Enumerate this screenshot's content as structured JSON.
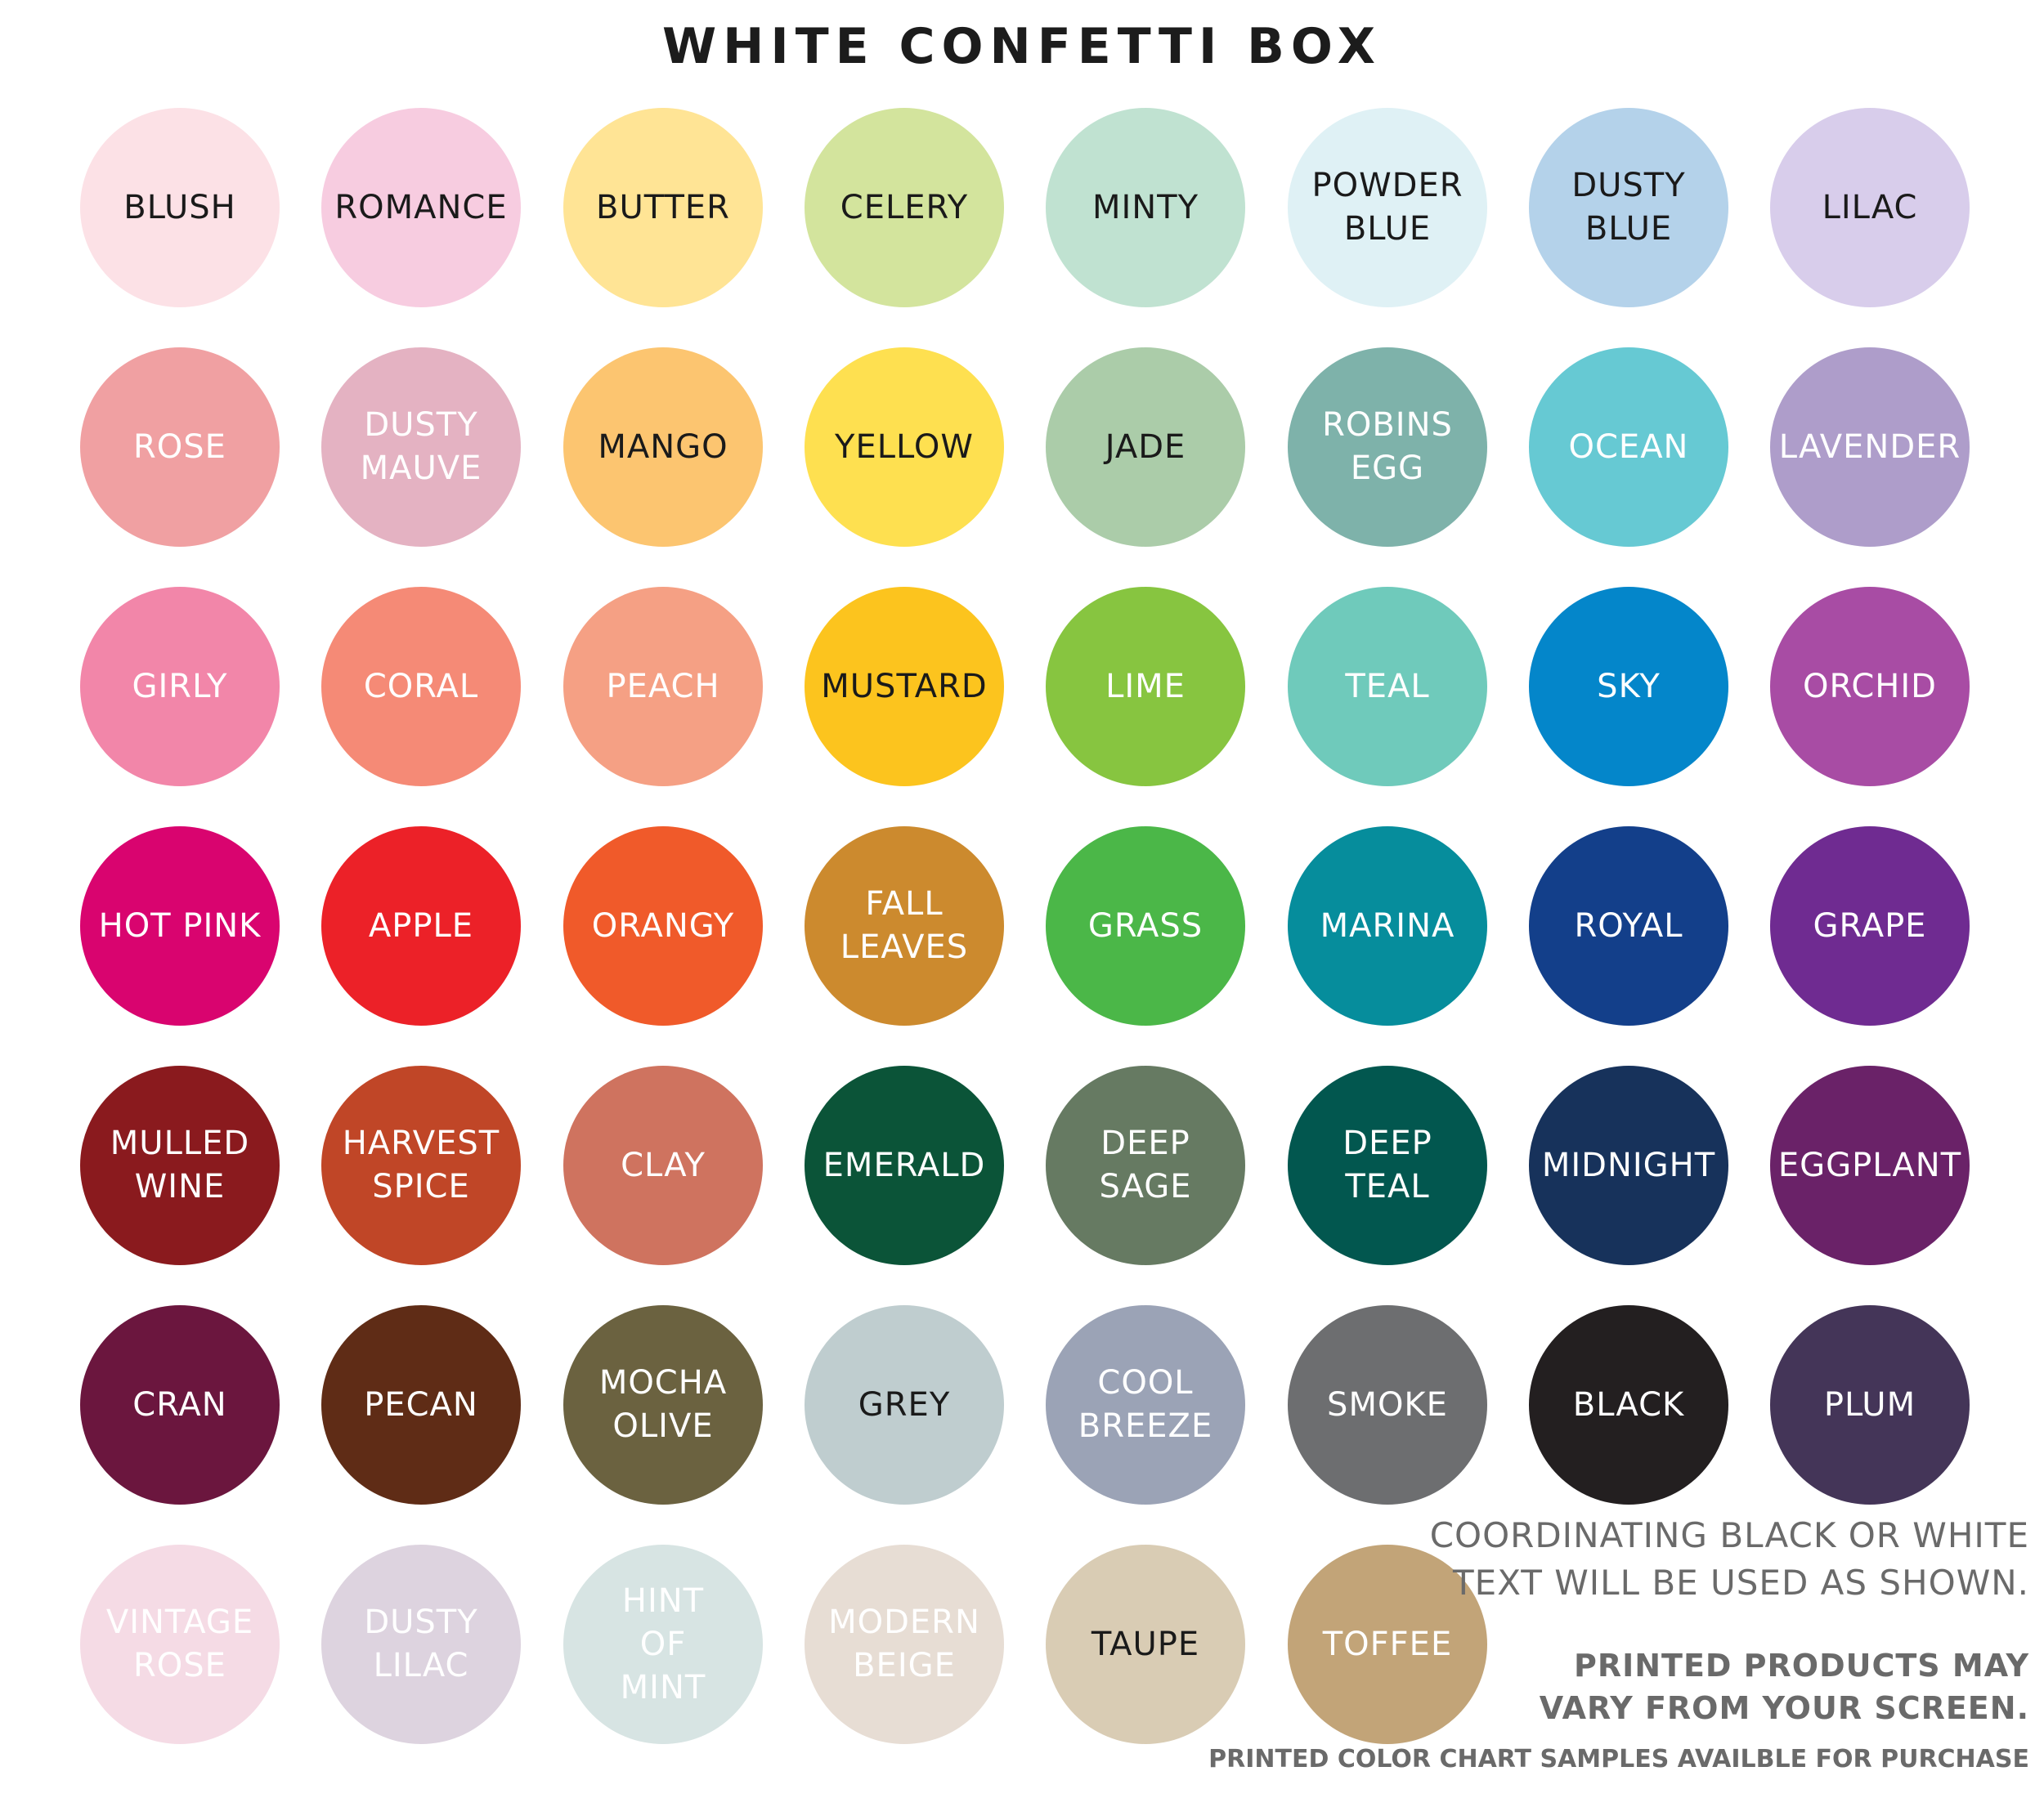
{
  "title": "WHITE CONFETTI BOX",
  "swatches": [
    {
      "lines": [
        "BLUSH"
      ],
      "fill": "#fce1e6",
      "text": "#1a1a1a"
    },
    {
      "lines": [
        "ROMANCE"
      ],
      "fill": "#f7cce0",
      "text": "#1a1a1a"
    },
    {
      "lines": [
        "BUTTER"
      ],
      "fill": "#ffe495",
      "text": "#1a1a1a"
    },
    {
      "lines": [
        "CELERY"
      ],
      "fill": "#d3e49d",
      "text": "#1a1a1a"
    },
    {
      "lines": [
        "MINTY"
      ],
      "fill": "#c0e2d1",
      "text": "#1a1a1a"
    },
    {
      "lines": [
        "POWDER",
        "BLUE"
      ],
      "fill": "#dff1f5",
      "text": "#1a1a1a"
    },
    {
      "lines": [
        "DUSTY",
        "BLUE"
      ],
      "fill": "#b4d2ea",
      "text": "#1a1a1a"
    },
    {
      "lines": [
        "LILAC"
      ],
      "fill": "#d8cdeb",
      "text": "#1a1a1a"
    },
    {
      "lines": [
        "ROSE"
      ],
      "fill": "#f0a0a2",
      "text": "#ffffff"
    },
    {
      "lines": [
        "DUSTY",
        "MAUVE"
      ],
      "fill": "#e4b2c2",
      "text": "#ffffff"
    },
    {
      "lines": [
        "MANGO"
      ],
      "fill": "#fcc570",
      "text": "#1a1a1a"
    },
    {
      "lines": [
        "YELLOW"
      ],
      "fill": "#fee050",
      "text": "#1a1a1a"
    },
    {
      "lines": [
        "JADE"
      ],
      "fill": "#abcca9",
      "text": "#1a1a1a"
    },
    {
      "lines": [
        "ROBINS",
        "EGG"
      ],
      "fill": "#7eb2aa",
      "text": "#ffffff"
    },
    {
      "lines": [
        "OCEAN"
      ],
      "fill": "#66c9d3",
      "text": "#ffffff"
    },
    {
      "lines": [
        "LAVENDER"
      ],
      "fill": "#ae9dca",
      "text": "#ffffff"
    },
    {
      "lines": [
        "GIRLY"
      ],
      "fill": "#f286a9",
      "text": "#ffffff"
    },
    {
      "lines": [
        "CORAL"
      ],
      "fill": "#f58a76",
      "text": "#ffffff"
    },
    {
      "lines": [
        "PEACH"
      ],
      "fill": "#f5a084",
      "text": "#ffffff"
    },
    {
      "lines": [
        "MUSTARD"
      ],
      "fill": "#fcc41e",
      "text": "#1a1a1a"
    },
    {
      "lines": [
        "LIME"
      ],
      "fill": "#87c540",
      "text": "#ffffff"
    },
    {
      "lines": [
        "TEAL"
      ],
      "fill": "#6fcabb",
      "text": "#ffffff"
    },
    {
      "lines": [
        "SKY"
      ],
      "fill": "#0486ca",
      "text": "#ffffff"
    },
    {
      "lines": [
        "ORCHID"
      ],
      "fill": "#a84ca4",
      "text": "#ffffff"
    },
    {
      "lines": [
        "HOT PINK"
      ],
      "fill": "#d9046f",
      "text": "#ffffff"
    },
    {
      "lines": [
        "APPLE"
      ],
      "fill": "#ec2128",
      "text": "#ffffff"
    },
    {
      "lines": [
        "ORANGY"
      ],
      "fill": "#f05a2a",
      "text": "#ffffff"
    },
    {
      "lines": [
        "FALL",
        "LEAVES"
      ],
      "fill": "#cc8a2e",
      "text": "#ffffff"
    },
    {
      "lines": [
        "GRASS"
      ],
      "fill": "#4bb748",
      "text": "#ffffff"
    },
    {
      "lines": [
        "MARINA"
      ],
      "fill": "#068d9c",
      "text": "#ffffff"
    },
    {
      "lines": [
        "ROYAL"
      ],
      "fill": "#133f8a",
      "text": "#ffffff"
    },
    {
      "lines": [
        "GRAPE"
      ],
      "fill": "#6f2b91",
      "text": "#ffffff"
    },
    {
      "lines": [
        "MULLED",
        "WINE"
      ],
      "fill": "#8a1a1e",
      "text": "#ffffff"
    },
    {
      "lines": [
        "HARVEST",
        "SPICE"
      ],
      "fill": "#c04627",
      "text": "#ffffff"
    },
    {
      "lines": [
        "CLAY"
      ],
      "fill": "#cf735f",
      "text": "#ffffff"
    },
    {
      "lines": [
        "EMERALD"
      ],
      "fill": "#0b5438",
      "text": "#ffffff"
    },
    {
      "lines": [
        "DEEP",
        "SAGE"
      ],
      "fill": "#667a62",
      "text": "#ffffff"
    },
    {
      "lines": [
        "DEEP",
        "TEAL"
      ],
      "fill": "#02574f",
      "text": "#ffffff"
    },
    {
      "lines": [
        "MIDNIGHT"
      ],
      "fill": "#17325b",
      "text": "#ffffff"
    },
    {
      "lines": [
        "EGGPLANT"
      ],
      "fill": "#6a2268",
      "text": "#ffffff"
    },
    {
      "lines": [
        "CRAN"
      ],
      "fill": "#6b163e",
      "text": "#ffffff"
    },
    {
      "lines": [
        "PECAN"
      ],
      "fill": "#5f2c16",
      "text": "#ffffff"
    },
    {
      "lines": [
        "MOCHA",
        "OLIVE"
      ],
      "fill": "#6b6240",
      "text": "#ffffff"
    },
    {
      "lines": [
        "GREY"
      ],
      "fill": "#bfcdcf",
      "text": "#1a1a1a"
    },
    {
      "lines": [
        "COOL",
        "BREEZE"
      ],
      "fill": "#9ba3b6",
      "text": "#ffffff"
    },
    {
      "lines": [
        "SMOKE"
      ],
      "fill": "#6d6e70",
      "text": "#ffffff"
    },
    {
      "lines": [
        "BLACK"
      ],
      "fill": "#231f20",
      "text": "#ffffff"
    },
    {
      "lines": [
        "PLUM"
      ],
      "fill": "#443558",
      "text": "#ffffff"
    },
    {
      "lines": [
        "VINTAGE",
        "ROSE"
      ],
      "fill": "#f5dbe5",
      "text": "#ffffff"
    },
    {
      "lines": [
        "DUSTY",
        "LILAC"
      ],
      "fill": "#ddd3df",
      "text": "#ffffff"
    },
    {
      "lines": [
        "HINT",
        "OF",
        "MINT"
      ],
      "fill": "#d7e4e3",
      "text": "#ffffff"
    },
    {
      "lines": [
        "MODERN",
        "BEIGE"
      ],
      "fill": "#e7ddd4",
      "text": "#ffffff"
    },
    {
      "lines": [
        "TAUPE"
      ],
      "fill": "#d9ccb4",
      "text": "#1a1a1a"
    },
    {
      "lines": [
        "TOFFEE"
      ],
      "fill": "#c2a478",
      "text": "#ffffff"
    }
  ],
  "notes": {
    "line1": "COORDINATING BLACK OR WHITE",
    "line2": "TEXT WILL BE USED AS SHOWN.",
    "line3": "PRINTED PRODUCTS MAY",
    "line4": "VARY FROM YOUR SCREEN.",
    "line5": "PRINTED COLOR CHART SAMPLES AVAILBLE FOR PURCHASE"
  }
}
